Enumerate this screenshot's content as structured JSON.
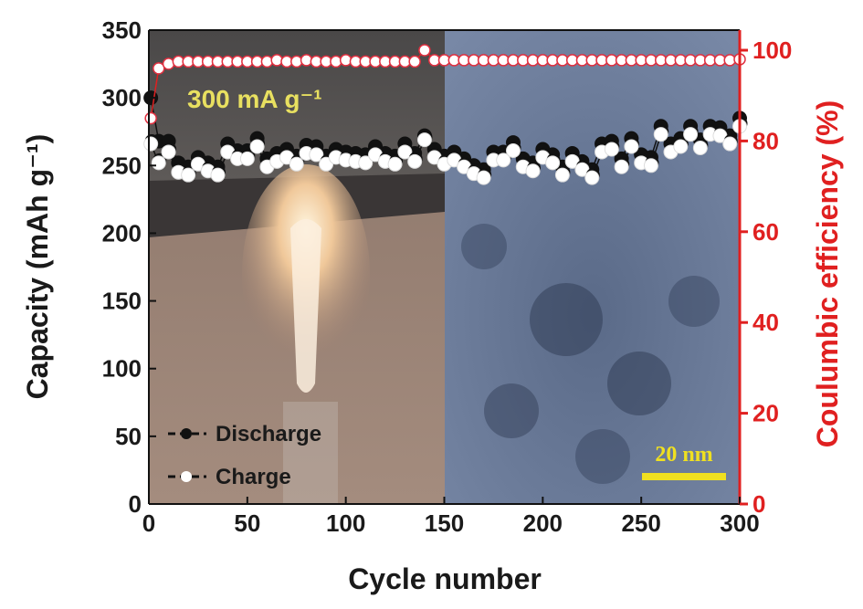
{
  "chart_data": {
    "type": "scatter",
    "xlabel": "Cycle number",
    "ylabel": "Capacity (mAh g⁻¹)",
    "y2label": "Coulumbic efficiency (%)",
    "xlim": [
      0,
      300
    ],
    "ylim": [
      0,
      350
    ],
    "y2lim": [
      0,
      105
    ],
    "xticks": [
      0,
      50,
      100,
      150,
      200,
      250,
      300
    ],
    "yticks": [
      0,
      50,
      100,
      150,
      200,
      250,
      300,
      350
    ],
    "y2ticks": [
      0,
      20,
      40,
      60,
      80,
      100
    ],
    "grid": false,
    "legend_placement": "bottom-left",
    "annotation": "300 mA g⁻¹",
    "scale_bar_label": "20 nm",
    "colors": {
      "axis_left": "#1a1a1a",
      "axis_right": "#e02020",
      "annotation": "#e8e060",
      "scale_bar": "#f0e020",
      "efficiency_marker_edge": "#e03040"
    },
    "x": [
      1,
      5,
      10,
      15,
      20,
      25,
      30,
      35,
      40,
      45,
      50,
      55,
      60,
      65,
      70,
      75,
      80,
      85,
      90,
      95,
      100,
      105,
      110,
      115,
      120,
      125,
      130,
      135,
      140,
      145,
      150,
      155,
      160,
      165,
      170,
      175,
      180,
      185,
      190,
      195,
      200,
      205,
      210,
      215,
      220,
      225,
      230,
      235,
      240,
      245,
      250,
      255,
      260,
      265,
      270,
      275,
      280,
      285,
      290,
      295,
      300
    ],
    "series": [
      {
        "name": "Discharge",
        "marker": "black-filled-circle",
        "values": [
          300,
          268,
          268,
          252,
          249,
          256,
          252,
          249,
          266,
          261,
          261,
          270,
          255,
          259,
          262,
          257,
          265,
          264,
          257,
          262,
          260,
          259,
          258,
          264,
          259,
          257,
          266,
          259,
          272,
          262,
          257,
          260,
          255,
          250,
          247,
          260,
          260,
          267,
          255,
          252,
          262,
          258,
          249,
          259,
          253,
          247,
          266,
          268,
          255,
          270,
          258,
          256,
          279,
          266,
          270,
          279,
          269,
          279,
          278,
          272,
          285
        ]
      },
      {
        "name": "Charge",
        "marker": "white-open-circle",
        "values": [
          266,
          252,
          260,
          245,
          243,
          251,
          246,
          243,
          260,
          255,
          255,
          264,
          249,
          253,
          256,
          251,
          259,
          258,
          251,
          256,
          254,
          253,
          252,
          258,
          253,
          251,
          260,
          253,
          269,
          256,
          251,
          254,
          249,
          244,
          241,
          254,
          254,
          261,
          249,
          246,
          256,
          252,
          243,
          253,
          247,
          241,
          260,
          262,
          249,
          264,
          252,
          250,
          273,
          260,
          264,
          273,
          263,
          273,
          272,
          266,
          279
        ]
      },
      {
        "name": "Coulombic efficiency",
        "axis": "right",
        "marker": "red-edged-white-circle",
        "values": [
          85,
          96,
          97,
          97.5,
          97.5,
          97.5,
          97.5,
          97.5,
          97.5,
          97.5,
          97.5,
          97.5,
          97.5,
          97.8,
          97.5,
          97.5,
          97.8,
          97.5,
          97.5,
          97.5,
          97.8,
          97.5,
          97.5,
          97.5,
          97.5,
          97.5,
          97.5,
          97.5,
          100,
          97.8,
          97.8,
          97.8,
          97.8,
          97.8,
          97.8,
          97.8,
          97.8,
          97.8,
          97.8,
          97.8,
          97.8,
          97.8,
          97.8,
          97.8,
          97.8,
          97.8,
          97.8,
          97.8,
          97.8,
          97.8,
          97.8,
          97.8,
          97.8,
          97.8,
          97.8,
          97.8,
          97.8,
          97.8,
          97.8,
          97.8,
          98
        ]
      }
    ]
  }
}
